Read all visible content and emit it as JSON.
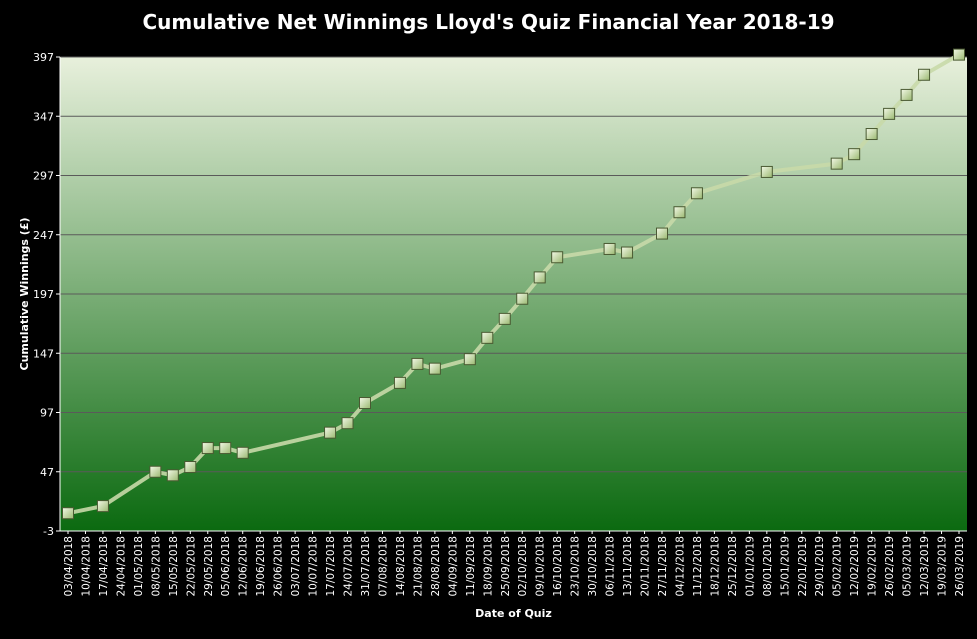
{
  "chart_data": {
    "type": "line",
    "title": "Cumulative Net Winnings Lloyd's Quiz Financial Year 2018-19",
    "xlabel": "Date of Quiz",
    "ylabel": "Cumulative Winnings (£)",
    "ylim": [
      -3,
      397
    ],
    "yticks": [
      -3,
      47,
      97,
      147,
      197,
      247,
      297,
      347,
      397
    ],
    "x_tick_labels": [
      "03/04/2018",
      "10/04/2018",
      "17/04/2018",
      "24/04/2018",
      "01/05/2018",
      "08/05/2018",
      "15/05/2018",
      "22/05/2018",
      "29/05/2018",
      "05/06/2018",
      "12/06/2018",
      "19/06/2018",
      "26/06/2018",
      "03/07/2018",
      "10/07/2018",
      "17/07/2018",
      "24/07/2018",
      "31/07/2018",
      "07/08/2018",
      "14/08/2018",
      "21/08/2018",
      "28/08/2018",
      "04/09/2018",
      "11/09/2018",
      "18/09/2018",
      "25/09/2018",
      "02/10/2018",
      "09/10/2018",
      "16/10/2018",
      "23/10/2018",
      "30/10/2018",
      "06/11/2018",
      "13/11/2018",
      "20/11/2018",
      "27/11/2018",
      "04/12/2018",
      "11/12/2018",
      "18/12/2018",
      "25/12/2018",
      "01/01/2019",
      "08/01/2019",
      "15/01/2019",
      "22/01/2019",
      "29/01/2019",
      "05/02/2019",
      "12/02/2019",
      "19/02/2019",
      "26/02/2019",
      "05/03/2019",
      "12/03/2019",
      "19/03/2019",
      "26/03/2019"
    ],
    "grid": true,
    "series": [
      {
        "points": [
          {
            "x": "03/04/2018",
            "y": 12
          },
          {
            "x": "17/04/2018",
            "y": 18
          },
          {
            "x": "08/05/2018",
            "y": 47
          },
          {
            "x": "15/05/2018",
            "y": 44
          },
          {
            "x": "22/05/2018",
            "y": 51
          },
          {
            "x": "29/05/2018",
            "y": 67
          },
          {
            "x": "05/06/2018",
            "y": 67
          },
          {
            "x": "12/06/2018",
            "y": 63
          },
          {
            "x": "17/07/2018",
            "y": 80
          },
          {
            "x": "24/07/2018",
            "y": 88
          },
          {
            "x": "31/07/2018",
            "y": 105
          },
          {
            "x": "14/08/2018",
            "y": 122
          },
          {
            "x": "21/08/2018",
            "y": 138
          },
          {
            "x": "28/08/2018",
            "y": 134
          },
          {
            "x": "11/09/2018",
            "y": 142
          },
          {
            "x": "18/09/2018",
            "y": 160
          },
          {
            "x": "25/09/2018",
            "y": 176
          },
          {
            "x": "02/10/2018",
            "y": 193
          },
          {
            "x": "09/10/2018",
            "y": 211
          },
          {
            "x": "16/10/2018",
            "y": 228
          },
          {
            "x": "06/11/2018",
            "y": 235
          },
          {
            "x": "13/11/2018",
            "y": 232
          },
          {
            "x": "27/11/2018",
            "y": 248
          },
          {
            "x": "04/12/2018",
            "y": 266
          },
          {
            "x": "11/12/2018",
            "y": 282
          },
          {
            "x": "08/01/2019",
            "y": 300
          },
          {
            "x": "05/02/2019",
            "y": 307
          },
          {
            "x": "12/02/2019",
            "y": 315
          },
          {
            "x": "19/02/2019",
            "y": 332
          },
          {
            "x": "26/02/2019",
            "y": 349
          },
          {
            "x": "05/03/2019",
            "y": 365
          },
          {
            "x": "12/03/2019",
            "y": 382
          },
          {
            "x": "26/03/2019",
            "y": 399
          }
        ]
      }
    ],
    "colors": {
      "background": "#000000",
      "plot_top": "#e8f0dc",
      "plot_bottom": "#0b6a10",
      "gridline": "#5a5a5a",
      "line": "#c8d9a8",
      "marker": "#cfe0a8"
    }
  }
}
